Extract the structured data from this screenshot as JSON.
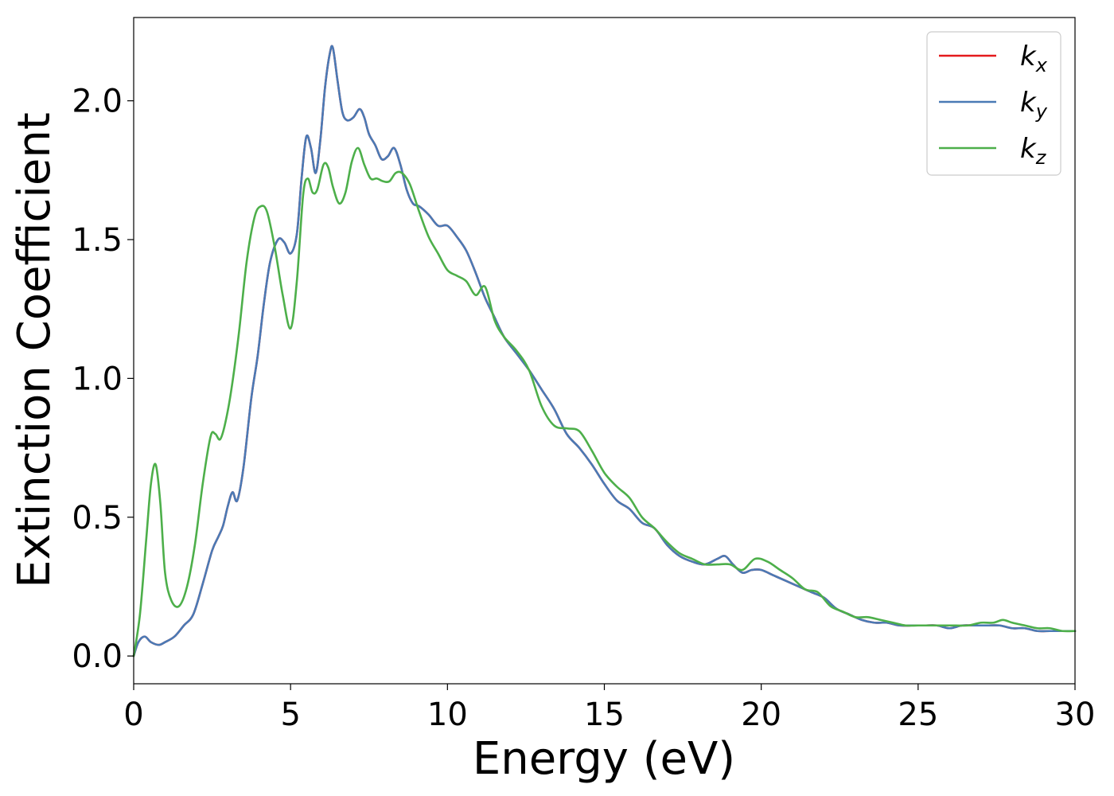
{
  "chart_data": {
    "type": "line",
    "title": "",
    "xlabel": "Energy (eV)",
    "ylabel": "Extinction Coefficient",
    "xlim": [
      0,
      30
    ],
    "ylim": [
      -0.1,
      2.3
    ],
    "xticks": [
      0,
      5,
      10,
      15,
      20,
      25,
      30
    ],
    "xtick_labels": [
      "0",
      "5",
      "10",
      "15",
      "20",
      "25",
      "30"
    ],
    "yticks": [
      0.0,
      0.5,
      1.0,
      1.5,
      2.0
    ],
    "ytick_labels": [
      "0.0",
      "0.5",
      "1.0",
      "1.5",
      "2.0"
    ],
    "grid": false,
    "legend_position": "top-right",
    "series": [
      {
        "name": "k",
        "subscript": "x",
        "color": "#e41a1c",
        "x": [
          0,
          0.15,
          0.35,
          0.55,
          0.8,
          1.0,
          1.3,
          1.6,
          1.9,
          2.2,
          2.5,
          2.7,
          2.85,
          3.0,
          3.15,
          3.3,
          3.5,
          3.75,
          3.95,
          4.15,
          4.35,
          4.6,
          4.8,
          5.0,
          5.2,
          5.35,
          5.5,
          5.65,
          5.8,
          5.95,
          6.1,
          6.25,
          6.35,
          6.5,
          6.65,
          6.8,
          7.0,
          7.2,
          7.35,
          7.5,
          7.7,
          7.9,
          8.1,
          8.3,
          8.5,
          8.7,
          8.9,
          9.1,
          9.4,
          9.7,
          10.0,
          10.3,
          10.6,
          10.9,
          11.2,
          11.5,
          11.8,
          12.2,
          12.6,
          13.0,
          13.4,
          13.8,
          14.2,
          14.6,
          15.0,
          15.4,
          15.8,
          16.2,
          16.6,
          17.0,
          17.4,
          17.8,
          18.2,
          18.6,
          18.85,
          19.1,
          19.4,
          19.7,
          20.0,
          20.4,
          20.8,
          21.2,
          21.6,
          22.0,
          22.4,
          22.8,
          23.2,
          23.6,
          24.0,
          24.4,
          24.8,
          25.2,
          25.6,
          26.0,
          26.4,
          26.8,
          27.2,
          27.6,
          28.0,
          28.4,
          28.8,
          29.2,
          29.6,
          30.0
        ],
        "y": [
          0.0,
          0.05,
          0.07,
          0.05,
          0.04,
          0.05,
          0.07,
          0.11,
          0.15,
          0.26,
          0.38,
          0.43,
          0.47,
          0.54,
          0.59,
          0.56,
          0.68,
          0.93,
          1.08,
          1.27,
          1.42,
          1.5,
          1.49,
          1.45,
          1.52,
          1.72,
          1.87,
          1.83,
          1.74,
          1.86,
          2.05,
          2.17,
          2.19,
          2.07,
          1.96,
          1.93,
          1.94,
          1.97,
          1.94,
          1.88,
          1.84,
          1.79,
          1.8,
          1.83,
          1.77,
          1.68,
          1.63,
          1.62,
          1.59,
          1.55,
          1.55,
          1.51,
          1.46,
          1.38,
          1.29,
          1.22,
          1.15,
          1.09,
          1.03,
          0.96,
          0.89,
          0.8,
          0.75,
          0.69,
          0.62,
          0.56,
          0.53,
          0.48,
          0.46,
          0.4,
          0.36,
          0.34,
          0.33,
          0.35,
          0.36,
          0.33,
          0.3,
          0.31,
          0.31,
          0.29,
          0.27,
          0.25,
          0.23,
          0.21,
          0.17,
          0.15,
          0.13,
          0.12,
          0.12,
          0.11,
          0.11,
          0.11,
          0.11,
          0.1,
          0.11,
          0.11,
          0.11,
          0.11,
          0.1,
          0.1,
          0.09,
          0.09,
          0.09,
          0.09
        ]
      },
      {
        "name": "k",
        "subscript": "y",
        "color": "#4a7ab5",
        "x": [
          0,
          0.15,
          0.35,
          0.55,
          0.8,
          1.0,
          1.3,
          1.6,
          1.9,
          2.2,
          2.5,
          2.7,
          2.85,
          3.0,
          3.15,
          3.3,
          3.5,
          3.75,
          3.95,
          4.15,
          4.35,
          4.6,
          4.8,
          5.0,
          5.2,
          5.35,
          5.5,
          5.65,
          5.8,
          5.95,
          6.1,
          6.25,
          6.35,
          6.5,
          6.65,
          6.8,
          7.0,
          7.2,
          7.35,
          7.5,
          7.7,
          7.9,
          8.1,
          8.3,
          8.5,
          8.7,
          8.9,
          9.1,
          9.4,
          9.7,
          10.0,
          10.3,
          10.6,
          10.9,
          11.2,
          11.5,
          11.8,
          12.2,
          12.6,
          13.0,
          13.4,
          13.8,
          14.2,
          14.6,
          15.0,
          15.4,
          15.8,
          16.2,
          16.6,
          17.0,
          17.4,
          17.8,
          18.2,
          18.6,
          18.85,
          19.1,
          19.4,
          19.7,
          20.0,
          20.4,
          20.8,
          21.2,
          21.6,
          22.0,
          22.4,
          22.8,
          23.2,
          23.6,
          24.0,
          24.4,
          24.8,
          25.2,
          25.6,
          26.0,
          26.4,
          26.8,
          27.2,
          27.6,
          28.0,
          28.4,
          28.8,
          29.2,
          29.6,
          30.0
        ],
        "y": [
          0.0,
          0.05,
          0.07,
          0.05,
          0.04,
          0.05,
          0.07,
          0.11,
          0.15,
          0.26,
          0.38,
          0.43,
          0.47,
          0.54,
          0.59,
          0.56,
          0.68,
          0.93,
          1.08,
          1.27,
          1.42,
          1.5,
          1.49,
          1.45,
          1.52,
          1.72,
          1.87,
          1.83,
          1.74,
          1.86,
          2.05,
          2.17,
          2.19,
          2.07,
          1.96,
          1.93,
          1.94,
          1.97,
          1.94,
          1.88,
          1.84,
          1.79,
          1.8,
          1.83,
          1.77,
          1.68,
          1.63,
          1.62,
          1.59,
          1.55,
          1.55,
          1.51,
          1.46,
          1.38,
          1.29,
          1.22,
          1.15,
          1.09,
          1.03,
          0.96,
          0.89,
          0.8,
          0.75,
          0.69,
          0.62,
          0.56,
          0.53,
          0.48,
          0.46,
          0.4,
          0.36,
          0.34,
          0.33,
          0.35,
          0.36,
          0.33,
          0.3,
          0.31,
          0.31,
          0.29,
          0.27,
          0.25,
          0.23,
          0.21,
          0.17,
          0.15,
          0.13,
          0.12,
          0.12,
          0.11,
          0.11,
          0.11,
          0.11,
          0.1,
          0.11,
          0.11,
          0.11,
          0.11,
          0.1,
          0.1,
          0.09,
          0.09,
          0.09,
          0.09
        ]
      },
      {
        "name": "k",
        "subscript": "z",
        "color": "#4daf4a",
        "x": [
          0,
          0.2,
          0.4,
          0.55,
          0.7,
          0.85,
          1.0,
          1.2,
          1.45,
          1.7,
          1.95,
          2.2,
          2.45,
          2.6,
          2.75,
          2.9,
          3.1,
          3.35,
          3.6,
          3.85,
          4.05,
          4.25,
          4.5,
          4.75,
          5.0,
          5.2,
          5.4,
          5.55,
          5.7,
          5.85,
          6.05,
          6.2,
          6.35,
          6.55,
          6.75,
          6.95,
          7.15,
          7.35,
          7.55,
          7.75,
          7.95,
          8.15,
          8.35,
          8.55,
          8.8,
          9.1,
          9.4,
          9.7,
          10.0,
          10.3,
          10.6,
          10.9,
          11.2,
          11.5,
          11.8,
          12.2,
          12.6,
          13.0,
          13.4,
          13.8,
          14.2,
          14.6,
          15.0,
          15.4,
          15.8,
          16.2,
          16.6,
          17.0,
          17.4,
          17.8,
          18.2,
          18.6,
          19.0,
          19.4,
          19.8,
          20.2,
          20.6,
          21.0,
          21.4,
          21.8,
          22.2,
          22.6,
          23.0,
          23.4,
          23.8,
          24.2,
          24.6,
          25.0,
          25.4,
          25.8,
          26.2,
          26.6,
          27.0,
          27.4,
          27.7,
          28.0,
          28.4,
          28.8,
          29.2,
          29.6,
          30.0
        ],
        "y": [
          0.0,
          0.15,
          0.42,
          0.62,
          0.69,
          0.55,
          0.3,
          0.2,
          0.18,
          0.25,
          0.4,
          0.62,
          0.79,
          0.8,
          0.78,
          0.83,
          0.95,
          1.16,
          1.42,
          1.58,
          1.62,
          1.6,
          1.47,
          1.3,
          1.18,
          1.35,
          1.66,
          1.72,
          1.67,
          1.68,
          1.77,
          1.76,
          1.69,
          1.63,
          1.67,
          1.78,
          1.83,
          1.77,
          1.72,
          1.72,
          1.71,
          1.71,
          1.74,
          1.74,
          1.7,
          1.6,
          1.51,
          1.45,
          1.39,
          1.37,
          1.35,
          1.3,
          1.33,
          1.21,
          1.15,
          1.1,
          1.03,
          0.9,
          0.83,
          0.82,
          0.81,
          0.74,
          0.66,
          0.61,
          0.57,
          0.5,
          0.46,
          0.41,
          0.37,
          0.35,
          0.33,
          0.33,
          0.33,
          0.31,
          0.35,
          0.34,
          0.31,
          0.28,
          0.24,
          0.23,
          0.18,
          0.16,
          0.14,
          0.14,
          0.13,
          0.12,
          0.11,
          0.11,
          0.11,
          0.11,
          0.11,
          0.11,
          0.12,
          0.12,
          0.13,
          0.12,
          0.11,
          0.1,
          0.1,
          0.09,
          0.09
        ]
      }
    ]
  }
}
